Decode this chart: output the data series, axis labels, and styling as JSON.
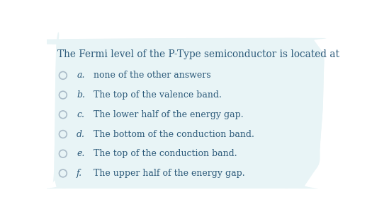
{
  "background_color": "#ffffff",
  "card_color": "#e8f4f6",
  "question": "The Fermi level of the P-Type semiconductor is located at",
  "question_color": "#2c5a7a",
  "question_fontsize": 9.8,
  "options": [
    {
      "letter": "a.",
      "text": "none of the other answers"
    },
    {
      "letter": "b.",
      "text": "The top of the valence band."
    },
    {
      "letter": "c.",
      "text": "The lower half of the energy gap."
    },
    {
      "letter": "d.",
      "text": "The bottom of the conduction band."
    },
    {
      "letter": "e.",
      "text": "The top of the conduction band."
    },
    {
      "letter": "f.",
      "text": "The upper half of the energy gap."
    }
  ],
  "option_color": "#2c5a7a",
  "letter_color": "#2c5a7a",
  "option_fontsize": 9.0,
  "circle_edge_color": "#aabbc8",
  "figsize": [
    5.25,
    3.13
  ],
  "dpi": 100
}
